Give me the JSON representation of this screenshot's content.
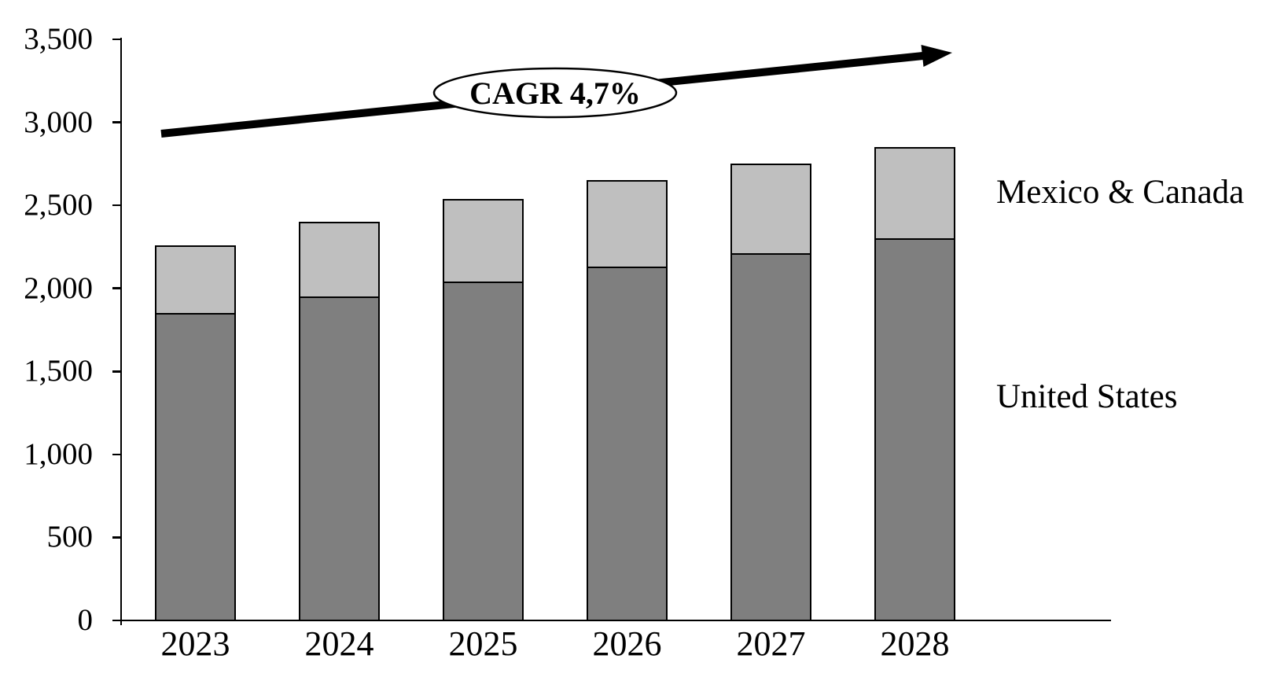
{
  "chart_data": {
    "type": "bar",
    "stacked": true,
    "title": "",
    "categories": [
      "2023",
      "2024",
      "2025",
      "2026",
      "2027",
      "2028"
    ],
    "series": [
      {
        "name": "United States",
        "color": "#7F7F7F",
        "values": [
          1850,
          1950,
          2040,
          2130,
          2210,
          2300
        ]
      },
      {
        "name": "Mexico & Canada",
        "color": "#BFBFBF",
        "values": [
          410,
          450,
          500,
          520,
          540,
          550
        ]
      }
    ],
    "totals": [
      2260,
      2400,
      2540,
      2650,
      2750,
      2850
    ],
    "annotation": "CAGR 4,7%",
    "xlabel": "",
    "ylabel": "",
    "ylim": [
      0,
      3500
    ],
    "ytick_step": 500,
    "ytick_labels": [
      "0",
      "500",
      "1,000",
      "1,500",
      "2,000",
      "2,500",
      "3,000",
      "3,500"
    ],
    "legend_position": "right",
    "grid": false,
    "axis_color": "#000000",
    "bar_border_color": "#000000",
    "arrow_color": "#000000",
    "ellipse_fill": "#ffffff"
  }
}
